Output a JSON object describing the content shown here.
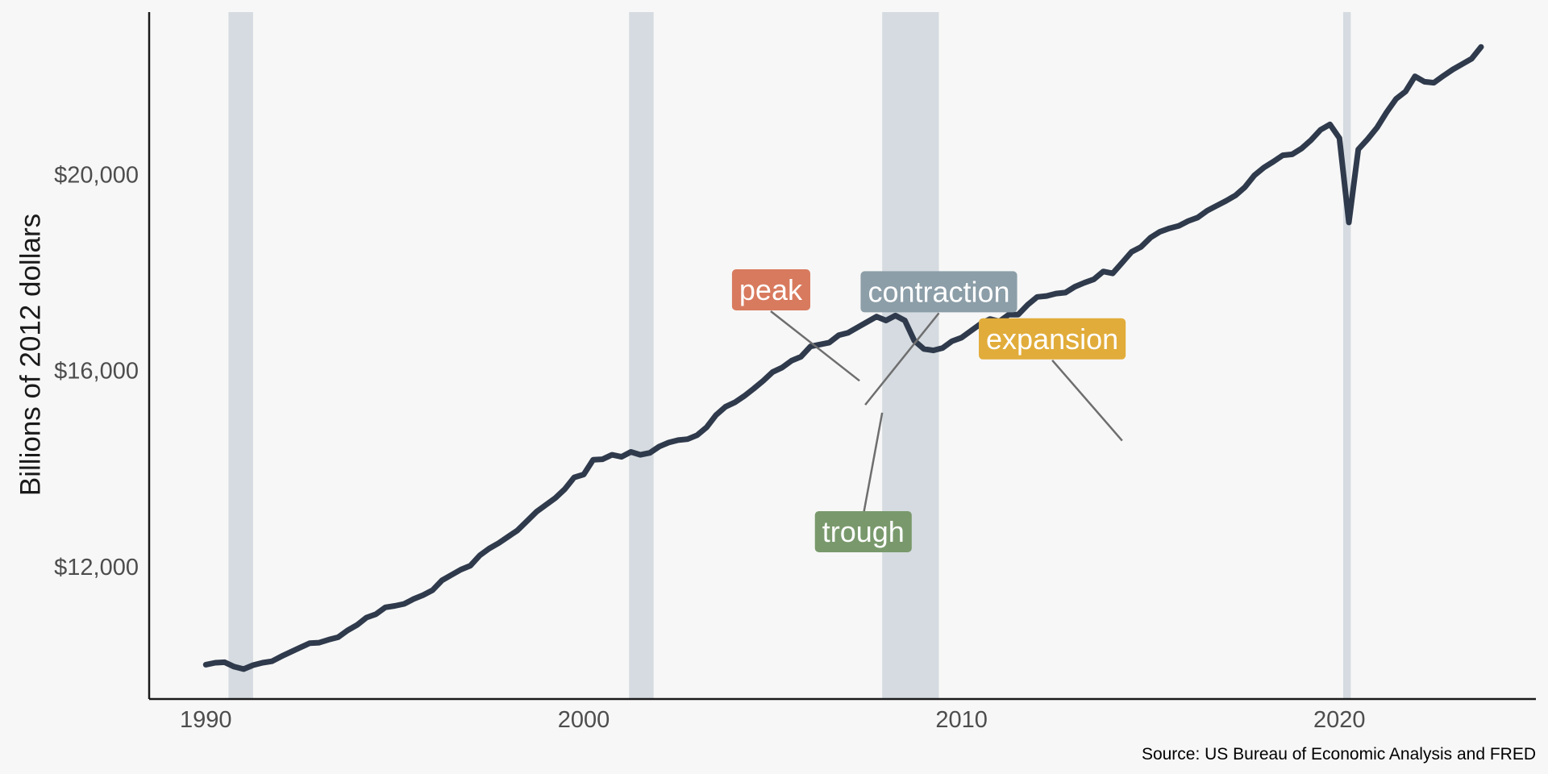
{
  "chart_data": {
    "type": "line",
    "title": "",
    "ylabel": "Billions of 2012 dollars",
    "xlabel": "",
    "source": "Source: US Bureau of Economic Analysis and FRED",
    "xlim": [
      1988.5,
      2025.2
    ],
    "ylim": [
      9340,
      23350
    ],
    "x_ticks": [
      {
        "value": 1990,
        "label": "1990"
      },
      {
        "value": 2000,
        "label": "2000"
      },
      {
        "value": 2010,
        "label": "2010"
      },
      {
        "value": 2020,
        "label": "2020"
      }
    ],
    "y_ticks": [
      {
        "value": 12000,
        "label": "$12,000"
      },
      {
        "value": 16000,
        "label": "$16,000"
      },
      {
        "value": 20000,
        "label": "$20,000"
      }
    ],
    "grid": false,
    "line_color": "#2f3a4c",
    "recession_color": "#d5dbe0",
    "recessions": [
      {
        "start": 1990.6,
        "end": 1991.25
      },
      {
        "start": 2001.2,
        "end": 2001.85
      },
      {
        "start": 2007.9,
        "end": 2009.4
      },
      {
        "start": 2020.1,
        "end": 2020.3
      }
    ],
    "series": [
      {
        "x": [
          1990.0,
          1990.25,
          1990.5,
          1990.75,
          1991.0,
          1991.25,
          1991.5,
          1991.75,
          1992.0,
          1992.25,
          1992.5,
          1992.75,
          1993.0,
          1993.25,
          1993.5,
          1993.75,
          1994.0,
          1994.25,
          1994.5,
          1994.75,
          1995.0,
          1995.25,
          1995.5,
          1995.75,
          1996.0,
          1996.25,
          1996.5,
          1996.75,
          1997.0,
          1997.25,
          1997.5,
          1997.75,
          1998.0,
          1998.25,
          1998.5,
          1998.75,
          1999.0,
          1999.25,
          1999.5,
          1999.75,
          2000.0,
          2000.25,
          2000.5,
          2000.75,
          2001.0,
          2001.25,
          2001.5,
          2001.75,
          2002.0,
          2002.25,
          2002.5,
          2002.75,
          2003.0,
          2003.25,
          2003.5,
          2003.75,
          2004.0,
          2004.25,
          2004.5,
          2004.75,
          2005.0,
          2005.25,
          2005.5,
          2005.75,
          2006.0,
          2006.25,
          2006.5,
          2006.75,
          2007.0,
          2007.25,
          2007.5,
          2007.75,
          2008.0,
          2008.25,
          2008.5,
          2008.75,
          2009.0,
          2009.25,
          2009.5,
          2009.75,
          2010.0,
          2010.25,
          2010.5,
          2010.75,
          2011.0,
          2011.25,
          2011.5,
          2011.75,
          2012.0,
          2012.25,
          2012.5,
          2012.75,
          2013.0,
          2013.25,
          2013.5,
          2013.75,
          2014.0,
          2014.25,
          2014.5,
          2014.75,
          2015.0,
          2015.25,
          2015.5,
          2015.75,
          2016.0,
          2016.25,
          2016.5,
          2016.75,
          2017.0,
          2017.25,
          2017.5,
          2017.75,
          2018.0,
          2018.25,
          2018.5,
          2018.75,
          2019.0,
          2019.25,
          2019.5,
          2019.75,
          2020.0,
          2020.25,
          2020.5,
          2020.75,
          2021.0,
          2021.25,
          2021.5,
          2021.75,
          2022.0,
          2022.25,
          2022.5,
          2022.75,
          2023.0,
          2023.25,
          2023.5,
          2023.75
        ],
        "values": [
          10040,
          10080,
          10090,
          10000,
          9950,
          10030,
          10080,
          10110,
          10210,
          10300,
          10390,
          10480,
          10490,
          10550,
          10600,
          10740,
          10850,
          11000,
          11070,
          11210,
          11240,
          11280,
          11380,
          11460,
          11560,
          11760,
          11870,
          11980,
          12060,
          12270,
          12410,
          12520,
          12650,
          12780,
          12970,
          13160,
          13300,
          13440,
          13620,
          13860,
          13920,
          14220,
          14230,
          14320,
          14280,
          14380,
          14320,
          14360,
          14490,
          14570,
          14620,
          14640,
          14720,
          14880,
          15130,
          15300,
          15390,
          15520,
          15670,
          15830,
          16010,
          16100,
          16240,
          16320,
          16530,
          16570,
          16610,
          16760,
          16810,
          16920,
          17030,
          17140,
          17060,
          17160,
          17060,
          16650,
          16480,
          16450,
          16500,
          16640,
          16710,
          16850,
          16990,
          17090,
          17040,
          17180,
          17180,
          17380,
          17540,
          17560,
          17610,
          17630,
          17750,
          17830,
          17900,
          18060,
          18020,
          18240,
          18460,
          18560,
          18750,
          18870,
          18940,
          18990,
          19090,
          19160,
          19300,
          19400,
          19500,
          19610,
          19780,
          20020,
          20180,
          20300,
          20430,
          20450,
          20570,
          20740,
          20950,
          21060,
          20780,
          19060,
          20550,
          20760,
          21000,
          21310,
          21580,
          21730,
          22040,
          21930,
          21910,
          22050,
          22180,
          22290,
          22400,
          22640
        ]
      }
    ],
    "annotations": [
      {
        "label": "peak",
        "color": "#d87a5e",
        "line_from": [
          2004.95,
          17250
        ],
        "line_to": [
          2007.3,
          15830
        ]
      },
      {
        "label": "contraction",
        "color": "#8c9ea8",
        "line_from": [
          2009.4,
          17210
        ],
        "line_to": [
          2007.45,
          15340
        ]
      },
      {
        "label": "trough",
        "color": "#79996c",
        "line_from": [
          2007.4,
          13090
        ],
        "line_to": [
          2007.9,
          15180
        ]
      },
      {
        "label": "expansion",
        "color": "#e1ac3a",
        "line_from": [
          2012.4,
          16250
        ],
        "line_to": [
          2014.25,
          14610
        ]
      }
    ]
  }
}
